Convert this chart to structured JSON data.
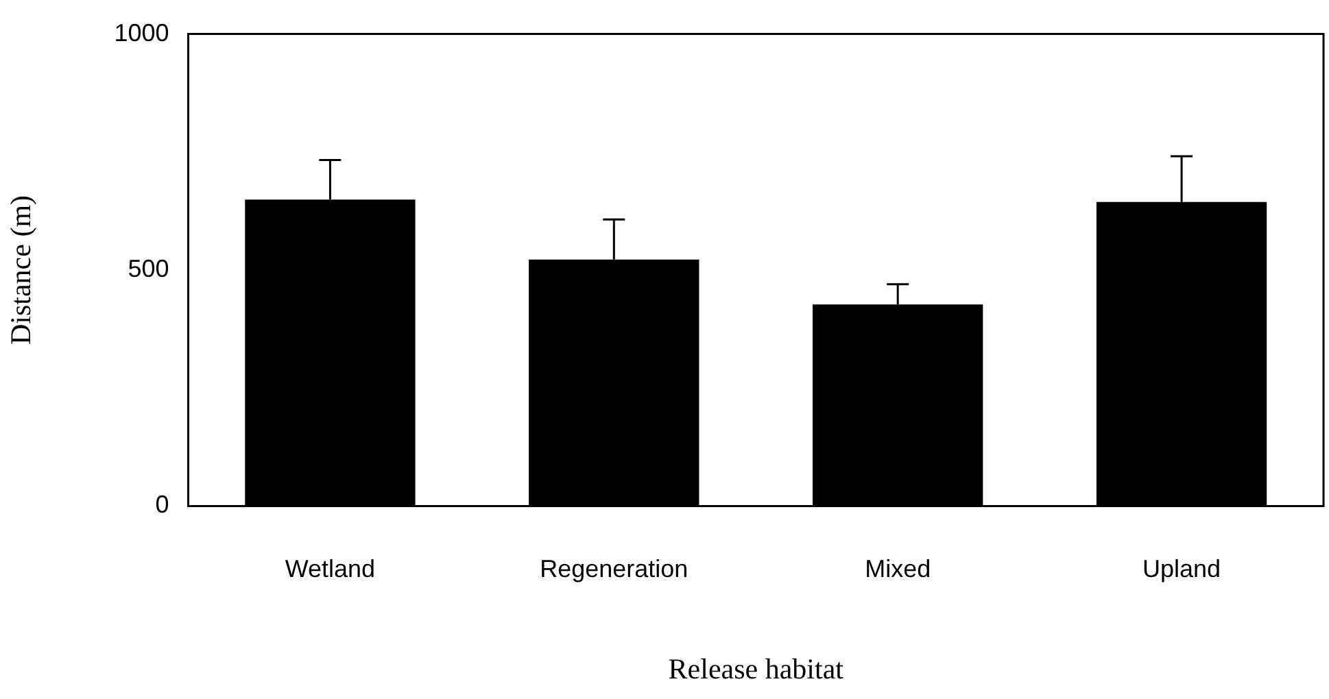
{
  "chart_data": {
    "type": "bar",
    "xlabel": "Release habitat",
    "ylabel": "Distance (m)",
    "categories": [
      "Wetland",
      "Regeneration",
      "Mixed",
      "Upland"
    ],
    "values": [
      649,
      522,
      427,
      644
    ],
    "errors": [
      [
        649,
        733
      ],
      [
        522,
        607
      ],
      [
        427,
        470
      ],
      [
        644,
        741
      ]
    ],
    "color": "#000000",
    "ylim": [
      0,
      1000
    ],
    "yticks": [
      0,
      500,
      {
        "value": 1000,
        "label": "1000"
      }
    ],
    "grid": false,
    "legend": false
  }
}
